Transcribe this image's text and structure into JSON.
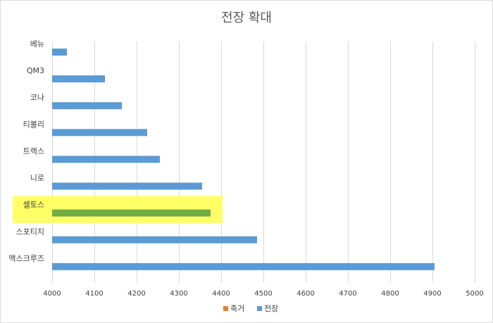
{
  "chart_data": {
    "type": "bar",
    "orientation": "horizontal",
    "title": "전장 확대",
    "xlabel": "",
    "ylabel": "",
    "xlim": [
      4000,
      5000
    ],
    "x_ticks": [
      4000,
      4100,
      4200,
      4300,
      4400,
      4500,
      4600,
      4700,
      4800,
      4900,
      5000
    ],
    "grid": true,
    "legend_position": "bottom",
    "categories": [
      "베뉴",
      "QM3",
      "코나",
      "티볼리",
      "트랙스",
      "니로",
      "셀토스",
      "스포티지",
      "맥스크루즈"
    ],
    "series": [
      {
        "name": "축거",
        "color": "#ED7D31",
        "values": [
          null,
          null,
          null,
          null,
          null,
          null,
          null,
          null,
          null
        ]
      },
      {
        "name": "전장",
        "color": "#5B9BD5",
        "values": [
          4035,
          4125,
          4165,
          4225,
          4255,
          4355,
          4375,
          4485,
          4905
        ]
      }
    ],
    "highlight": {
      "category": "셀토스",
      "bar_color": "#70AD47",
      "background_color": "#FFFF66"
    }
  }
}
